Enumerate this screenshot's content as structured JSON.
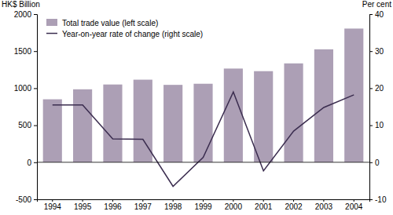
{
  "chart_data": {
    "type": "bar",
    "y_label": "HK$ Billion",
    "y2_label": "Per cent",
    "categories": [
      "1994",
      "1995",
      "1996",
      "1997",
      "1998",
      "1999",
      "2000",
      "2001",
      "2002",
      "2003",
      "2004"
    ],
    "series": [
      {
        "name": "Total trade value (left scale)",
        "type": "bar",
        "color": "#ac9fb5",
        "values": [
          850,
          985,
          1050,
          1115,
          1045,
          1060,
          1265,
          1230,
          1335,
          1525,
          1805
        ]
      },
      {
        "name": "Year-on-year rate of change (right scale)",
        "type": "line",
        "axis": "y2",
        "color": "#3b2d4f",
        "values": [
          15.5,
          15.5,
          6.3,
          6.2,
          -6.5,
          1.3,
          19.0,
          -2.3,
          8.4,
          14.8,
          18.2
        ]
      }
    ],
    "ylim": [
      -500,
      2000
    ],
    "yticks": [
      -500,
      0,
      500,
      1000,
      1500,
      2000
    ],
    "y2lim": [
      -10,
      40
    ],
    "y2ticks": [
      -10,
      0,
      10,
      20,
      30,
      40
    ],
    "legend": "upper left",
    "grid": false
  }
}
